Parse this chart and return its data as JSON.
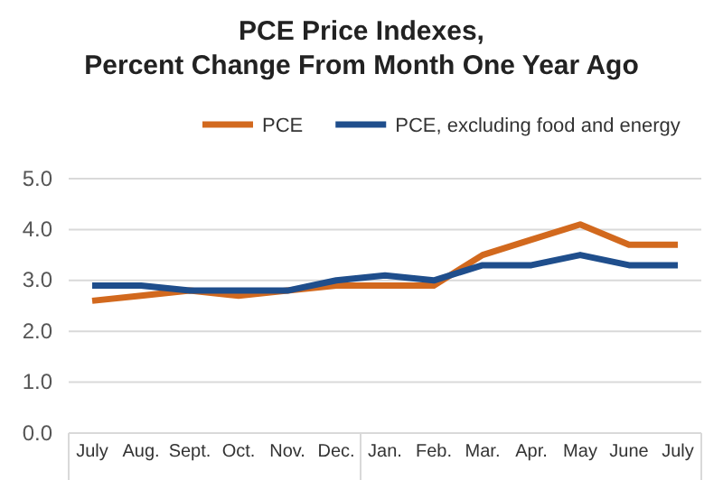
{
  "chart_data": {
    "type": "line",
    "title": "PCE Price Indexes,\nPercent Change From Month One Year Ago",
    "categories": [
      "July",
      "Aug.",
      "Sept.",
      "Oct.",
      "Nov.",
      "Dec.",
      "Jan.",
      "Feb.",
      "Mar.",
      "Apr.",
      "May",
      "June",
      "July"
    ],
    "series": [
      {
        "name": "PCE",
        "color": "#d2691e",
        "values": [
          2.6,
          2.7,
          2.8,
          2.7,
          2.8,
          2.9,
          2.9,
          2.9,
          3.5,
          3.8,
          4.1,
          3.7,
          3.7
        ]
      },
      {
        "name": "PCE, excluding food and energy",
        "color": "#1f4e8c",
        "values": [
          2.9,
          2.9,
          2.8,
          2.8,
          2.8,
          3.0,
          3.1,
          3.0,
          3.3,
          3.3,
          3.5,
          3.3,
          3.3
        ]
      }
    ],
    "ylim": [
      0,
      5
    ],
    "yticks": [
      {
        "value": 0,
        "label": "0.0"
      },
      {
        "value": 1,
        "label": "1.0"
      },
      {
        "value": 2,
        "label": "2.0"
      },
      {
        "value": 3,
        "label": "3.0"
      },
      {
        "value": 4,
        "label": "4.0"
      },
      {
        "value": 5,
        "label": "5.0"
      }
    ],
    "grid": "y",
    "legend": "top",
    "marker": "none",
    "line_style": "solid"
  }
}
